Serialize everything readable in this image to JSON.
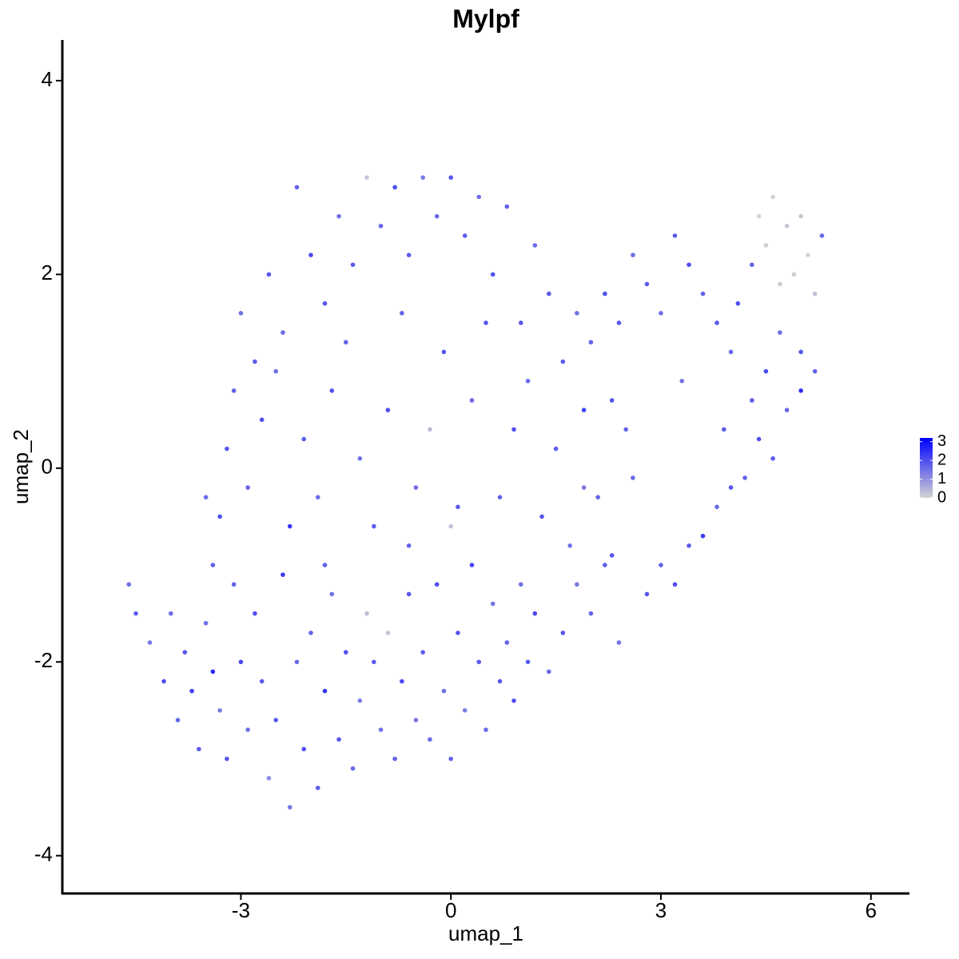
{
  "chart_data": {
    "type": "scatter",
    "title": "Mylpf",
    "x_label": "umap_1",
    "y_label": "umap_2",
    "xlim": [
      -5.55,
      6.55
    ],
    "ylim": [
      -4.39,
      4.42
    ],
    "xticks": [
      -3,
      0,
      3,
      6
    ],
    "yticks": [
      -4,
      -2,
      0,
      2,
      4
    ],
    "color_low": "#d3d3d3",
    "color_high": "#0000ff",
    "clim": [
      0,
      3.2
    ],
    "colorbar_ticks": [
      0,
      1,
      2,
      3
    ],
    "x": [
      -4.6,
      -4.5,
      -4.3,
      -4.1,
      -4.0,
      -3.9,
      -3.8,
      -3.7,
      -3.6,
      -3.5,
      -3.4,
      -3.3,
      -3.2,
      -3.1,
      -3.0,
      -2.9,
      -2.8,
      -2.7,
      -2.6,
      -2.5,
      -2.4,
      -2.3,
      -2.2,
      -2.1,
      -2.0,
      -1.9,
      -1.8,
      -1.7,
      -1.6,
      -1.5,
      -1.4,
      -1.3,
      -1.2,
      -1.1,
      -1.0,
      -0.9,
      -0.8,
      -0.7,
      -0.6,
      -0.5,
      -0.4,
      -0.3,
      -0.2,
      -0.1,
      0.0,
      0.1,
      0.2,
      0.3,
      0.4,
      0.5,
      0.6,
      0.7,
      0.8,
      0.9,
      1.0,
      1.1,
      1.2,
      1.4,
      1.6,
      1.8,
      2.0,
      2.2,
      2.4,
      2.8,
      3.0,
      3.2,
      3.4,
      3.6,
      3.8,
      4.0,
      4.2,
      4.4,
      4.6,
      4.8,
      5.0,
      5.2,
      5.0,
      4.7,
      4.5,
      4.3,
      4.0,
      3.8,
      3.6,
      3.4,
      3.2,
      3.0,
      2.8,
      2.6,
      2.4,
      2.2,
      2.0,
      1.8,
      1.6,
      2.3,
      2.5,
      3.3,
      3.9,
      4.1,
      4.5,
      4.6,
      4.8,
      4.9,
      5.1,
      5.2,
      4.7,
      5.0,
      4.4,
      5.3,
      4.3,
      1.4,
      1.2,
      1.0,
      0.8,
      0.6,
      0.4,
      0.2,
      0.0,
      -0.2,
      -0.4,
      -0.6,
      -0.8,
      -1.0,
      -1.2,
      -1.4,
      -1.6,
      -1.8,
      -2.0,
      -2.2,
      -2.4,
      -2.6,
      -2.8,
      -3.0,
      -3.1,
      -3.2,
      -3.3,
      -3.5,
      -3.4,
      -2.9,
      -2.7,
      -2.5,
      -2.3,
      -2.1,
      -1.9,
      -1.7,
      -1.5,
      -1.3,
      -1.1,
      -0.9,
      -0.7,
      -0.5,
      -0.3,
      -0.1,
      0.1,
      0.3,
      0.5,
      0.7,
      0.9,
      1.1,
      1.3,
      1.5,
      1.7,
      1.9,
      2.1,
      2.3,
      -1.8,
      -0.6,
      0.0,
      1.9,
      2.6
    ],
    "y": [
      -1.2,
      -1.5,
      -1.8,
      -2.2,
      -1.5,
      -2.6,
      -1.9,
      -2.3,
      -2.9,
      -1.6,
      -2.1,
      -2.5,
      -3.0,
      -1.2,
      -2.0,
      -2.7,
      -1.5,
      -2.2,
      -3.2,
      -2.6,
      -1.1,
      -3.5,
      -2.0,
      -2.9,
      -1.7,
      -3.3,
      -2.3,
      -1.3,
      -2.8,
      -1.9,
      -3.1,
      -2.4,
      -1.5,
      -2.0,
      -2.7,
      -1.7,
      -3.0,
      -2.2,
      -1.3,
      -2.6,
      -1.9,
      -2.8,
      -1.2,
      -2.3,
      -3.0,
      -1.7,
      -2.5,
      -1.0,
      -2.0,
      -2.7,
      -1.4,
      -2.2,
      -1.8,
      -2.4,
      -1.2,
      -2.0,
      -1.5,
      -2.1,
      -1.7,
      -1.2,
      -1.5,
      -1.0,
      -1.8,
      -1.3,
      -1.0,
      -1.2,
      -0.8,
      -0.7,
      -0.4,
      -0.2,
      -0.1,
      0.3,
      0.1,
      0.6,
      0.8,
      1.0,
      1.2,
      1.4,
      1.0,
      0.7,
      1.2,
      1.5,
      1.8,
      2.1,
      2.4,
      1.6,
      1.9,
      2.2,
      1.5,
      1.8,
      1.3,
      1.6,
      1.1,
      0.7,
      0.4,
      0.9,
      0.4,
      1.7,
      2.3,
      2.8,
      2.5,
      2.0,
      2.2,
      1.8,
      1.9,
      2.6,
      2.6,
      2.4,
      2.1,
      1.8,
      2.3,
      1.5,
      2.7,
      2.0,
      2.8,
      2.4,
      3.0,
      2.6,
      3.0,
      2.2,
      2.9,
      2.5,
      3.0,
      2.1,
      2.6,
      1.7,
      2.2,
      2.9,
      1.4,
      2.0,
      1.1,
      1.6,
      0.8,
      0.2,
      -0.5,
      -0.3,
      -1.0,
      -0.2,
      0.5,
      1.0,
      -0.6,
      0.3,
      -0.3,
      0.8,
      1.3,
      0.1,
      -0.6,
      0.6,
      1.6,
      -0.2,
      0.4,
      1.2,
      -0.4,
      0.7,
      1.5,
      -0.3,
      0.4,
      0.9,
      -0.5,
      0.2,
      -0.8,
      0.6,
      -0.3,
      -0.9,
      -1.0,
      -0.8,
      -0.6,
      -0.2,
      -0.1
    ],
    "values": [
      1.5,
      1.8,
      1.4,
      2.0,
      1.6,
      1.7,
      1.9,
      2.2,
      1.8,
      1.5,
      2.6,
      1.3,
      1.9,
      1.7,
      2.1,
      1.5,
      2.0,
      1.8,
      1.1,
      1.9,
      2.3,
      1.4,
      1.6,
      2.0,
      1.7,
      1.8,
      2.4,
      1.5,
      1.9,
      2.0,
      1.6,
      1.3,
      0.3,
      1.8,
      1.5,
      0.2,
      1.7,
      2.1,
      1.9,
      1.4,
      1.8,
      1.6,
      2.0,
      1.5,
      1.7,
      1.9,
      1.3,
      2.2,
      1.8,
      1.6,
      1.4,
      1.9,
      1.7,
      2.0,
      1.5,
      1.8,
      2.1,
      1.6,
      1.9,
      1.4,
      1.7,
      1.8,
      1.5,
      1.9,
      1.7,
      2.0,
      1.8,
      2.3,
      1.6,
      1.9,
      1.7,
      2.0,
      1.8,
      1.6,
      2.5,
      1.7,
      1.9,
      1.5,
      2.1,
      1.8,
      1.6,
      1.9,
      1.7,
      2.0,
      1.8,
      1.5,
      1.8,
      1.6,
      1.9,
      2.0,
      1.7,
      1.5,
      1.8,
      1.9,
      1.7,
      1.4,
      1.8,
      2.0,
      0.1,
      0.0,
      0.2,
      0.1,
      0.0,
      0.3,
      0.1,
      0.2,
      0.0,
      1.6,
      1.7,
      1.8,
      1.6,
      1.9,
      1.7,
      2.0,
      1.5,
      1.8,
      1.9,
      1.6,
      1.4,
      1.8,
      2.0,
      1.7,
      0.2,
      1.8,
      1.5,
      1.9,
      2.1,
      1.7,
      1.6,
      1.9,
      1.8,
      1.5,
      1.7,
      1.9,
      2.0,
      1.6,
      1.8,
      1.7,
      2.0,
      1.5,
      2.4,
      1.8,
      1.6,
      1.9,
      1.7,
      1.5,
      1.8,
      2.0,
      1.7,
      1.6,
      0.4,
      1.9,
      1.8,
      1.6,
      1.9,
      1.7,
      2.0,
      1.6,
      1.9,
      1.8,
      1.5,
      2.2,
      1.7,
      1.9,
      1.8,
      1.7,
      0.3,
      1.4,
      1.6
    ]
  }
}
